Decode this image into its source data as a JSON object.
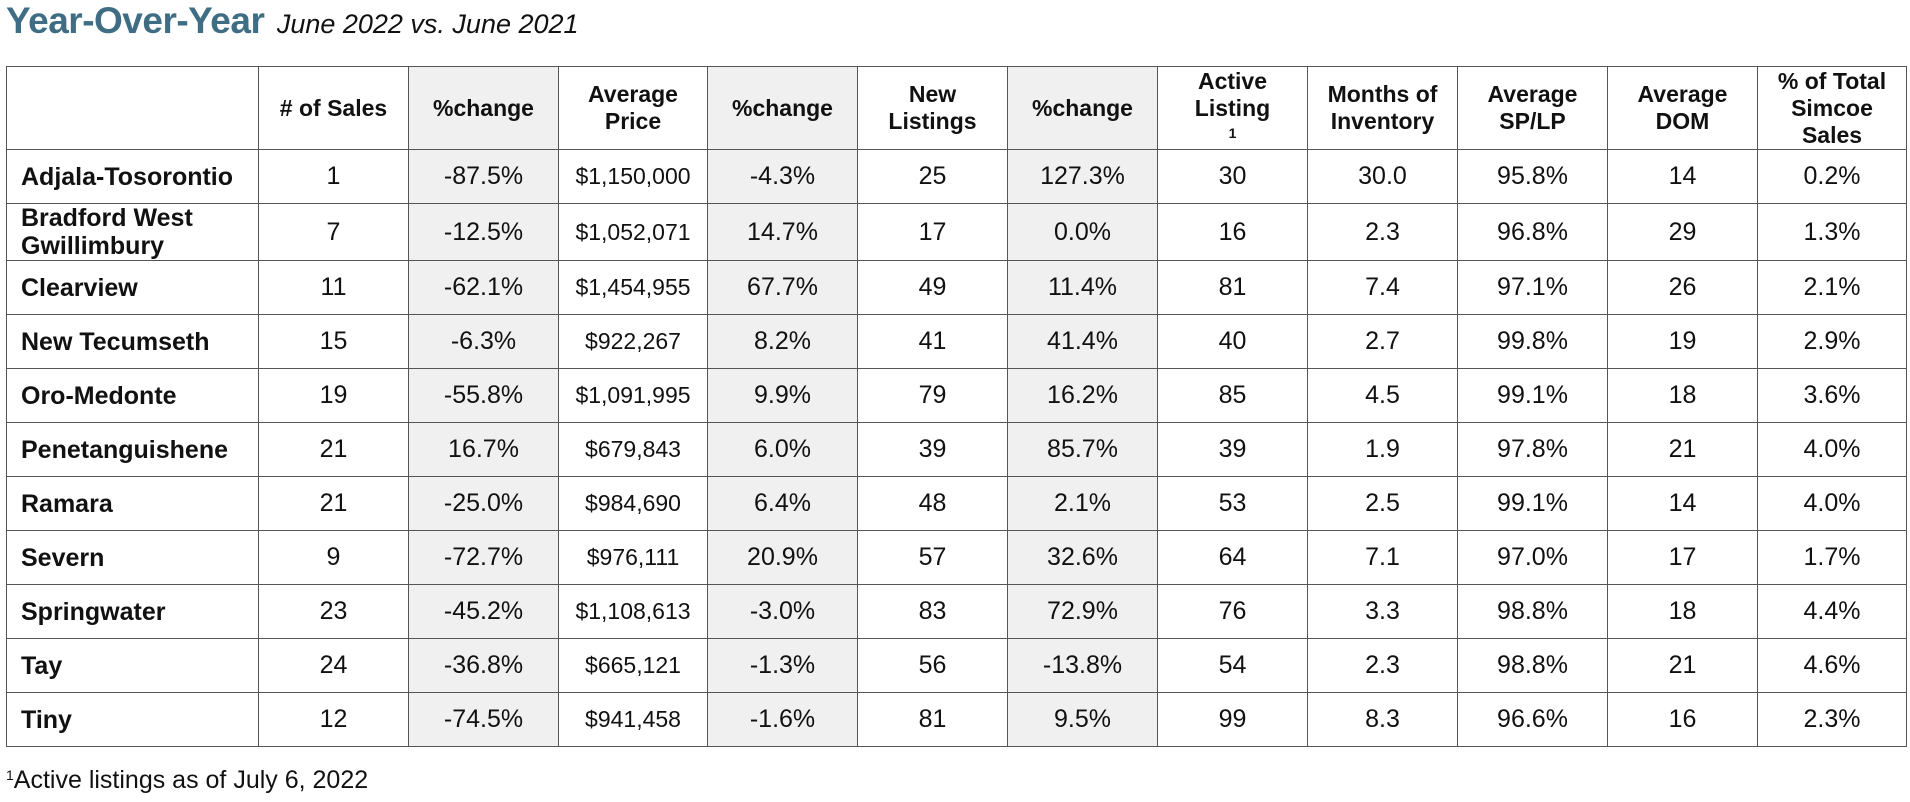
{
  "heading": {
    "title": "Year-Over-Year",
    "subtitle": "June 2022 vs. June 2021"
  },
  "table": {
    "columns": [
      "",
      "# of Sales",
      "%change",
      "Average Price",
      "%change",
      "New Listings",
      "%change",
      "Active Listing",
      "Months of Inventory",
      "Average SP/LP",
      "Average DOM",
      "% of Total Simcoe Sales"
    ],
    "active_listing_footnote_mark": "1",
    "rows": [
      [
        "Adjala-Tosorontio",
        "1",
        "-87.5%",
        "$1,150,000",
        "-4.3%",
        "25",
        "127.3%",
        "30",
        "30.0",
        "95.8%",
        "14",
        "0.2%"
      ],
      [
        "Bradford West Gwillimbury",
        "7",
        "-12.5%",
        "$1,052,071",
        "14.7%",
        "17",
        "0.0%",
        "16",
        "2.3",
        "96.8%",
        "29",
        "1.3%"
      ],
      [
        "Clearview",
        "11",
        "-62.1%",
        "$1,454,955",
        "67.7%",
        "49",
        "11.4%",
        "81",
        "7.4",
        "97.1%",
        "26",
        "2.1%"
      ],
      [
        "New Tecumseth",
        "15",
        "-6.3%",
        "$922,267",
        "8.2%",
        "41",
        "41.4%",
        "40",
        "2.7",
        "99.8%",
        "19",
        "2.9%"
      ],
      [
        "Oro-Medonte",
        "19",
        "-55.8%",
        "$1,091,995",
        "9.9%",
        "79",
        "16.2%",
        "85",
        "4.5",
        "99.1%",
        "18",
        "3.6%"
      ],
      [
        "Penetanguishene",
        "21",
        "16.7%",
        "$679,843",
        "6.0%",
        "39",
        "85.7%",
        "39",
        "1.9",
        "97.8%",
        "21",
        "4.0%"
      ],
      [
        "Ramara",
        "21",
        "-25.0%",
        "$984,690",
        "6.4%",
        "48",
        "2.1%",
        "53",
        "2.5",
        "99.1%",
        "14",
        "4.0%"
      ],
      [
        "Severn",
        "9",
        "-72.7%",
        "$976,111",
        "20.9%",
        "57",
        "32.6%",
        "64",
        "7.1",
        "97.0%",
        "17",
        "1.7%"
      ],
      [
        "Springwater",
        "23",
        "-45.2%",
        "$1,108,613",
        "-3.0%",
        "83",
        "72.9%",
        "76",
        "3.3",
        "98.8%",
        "18",
        "4.4%"
      ],
      [
        "Tay",
        "24",
        "-36.8%",
        "$665,121",
        "-1.3%",
        "56",
        "-13.8%",
        "54",
        "2.3",
        "98.8%",
        "21",
        "4.6%"
      ],
      [
        "Tiny",
        "12",
        "-74.5%",
        "$941,458",
        "-1.6%",
        "81",
        "9.5%",
        "99",
        "8.3",
        "96.6%",
        "16",
        "2.3%"
      ]
    ]
  },
  "footnote": {
    "mark": "1",
    "text": "Active listings as of July 6, 2022"
  },
  "colors": {
    "title": "#3f6e84",
    "shaded_column": "#f0f0f0",
    "border": "#555555"
  }
}
